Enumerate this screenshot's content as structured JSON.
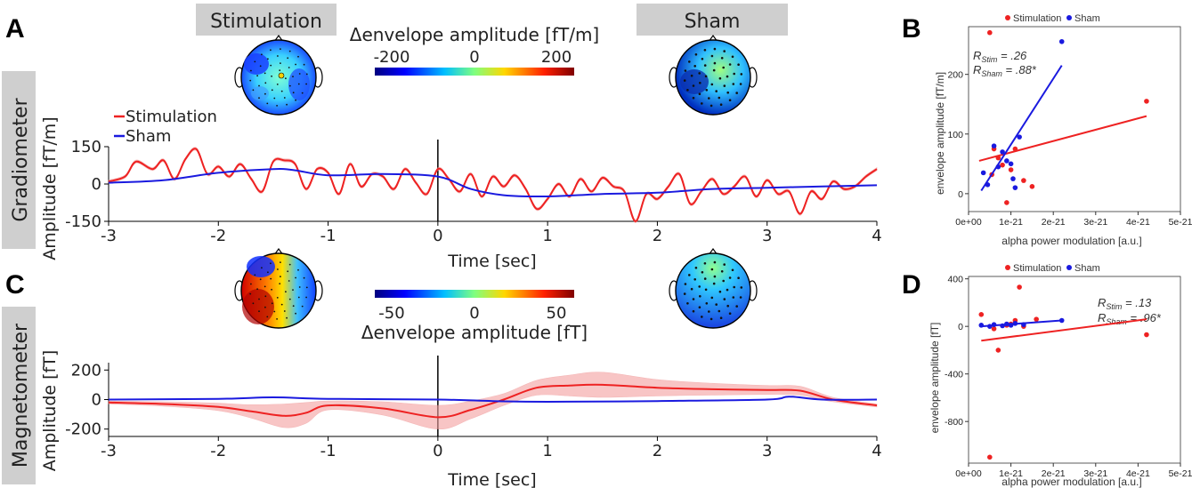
{
  "panels": {
    "a": "A",
    "b": "B",
    "c": "C",
    "d": "D"
  },
  "conditions": {
    "stim": "Stimulation",
    "sham": "Sham"
  },
  "sensors": {
    "grad": "Gradiometer",
    "mag": "Magnetometer"
  },
  "colorbars": {
    "grad": {
      "label": "Δenvelope amplitude [fT/m]",
      "ticks": [
        "-200",
        "0",
        "200"
      ]
    },
    "mag": {
      "label": "Δenvelope amplitude [fT]",
      "ticks": [
        "-50",
        "0",
        "50"
      ]
    }
  },
  "colors": {
    "stim": "#ee2222",
    "sham": "#1a1adf"
  },
  "chart_data": [
    {
      "id": "A",
      "type": "line",
      "xlabel": "Time [sec]",
      "ylabel": "Amplitude [fT/m]",
      "xlim": [
        -3,
        4
      ],
      "ylim": [
        -150,
        150
      ],
      "xticks": [
        "-3",
        "-2",
        "-1",
        "0",
        "1",
        "2",
        "3",
        "4"
      ],
      "yticks": [
        "150",
        "0",
        "-150"
      ],
      "legend": [
        "Stimulation",
        "Sham"
      ],
      "series": [
        {
          "name": "Stimulation",
          "x": [
            -3,
            -2.85,
            -2.75,
            -2.6,
            -2.5,
            -2.4,
            -2.3,
            -2.2,
            -2.1,
            -2.0,
            -1.9,
            -1.8,
            -1.7,
            -1.6,
            -1.5,
            -1.4,
            -1.3,
            -1.2,
            -1.1,
            -1.0,
            -0.9,
            -0.8,
            -0.7,
            -0.6,
            -0.5,
            -0.4,
            -0.3,
            -0.2,
            -0.1,
            0,
            0.1,
            0.2,
            0.3,
            0.4,
            0.5,
            0.6,
            0.7,
            0.8,
            0.9,
            1.0,
            1.1,
            1.2,
            1.3,
            1.4,
            1.5,
            1.6,
            1.7,
            1.8,
            1.9,
            2.0,
            2.1,
            2.2,
            2.3,
            2.4,
            2.5,
            2.6,
            2.7,
            2.8,
            2.9,
            3.0,
            3.1,
            3.2,
            3.3,
            3.4,
            3.5,
            3.6,
            3.7,
            3.8,
            3.9,
            4.0
          ],
          "y": [
            10,
            30,
            90,
            60,
            95,
            20,
            100,
            140,
            40,
            70,
            30,
            80,
            20,
            -30,
            90,
            95,
            80,
            -20,
            60,
            45,
            -40,
            80,
            -10,
            40,
            30,
            -20,
            60,
            5,
            -40,
            60,
            20,
            -30,
            40,
            -50,
            30,
            -10,
            35,
            -20,
            -100,
            -60,
            0,
            -50,
            20,
            -30,
            25,
            -10,
            -30,
            -150,
            -40,
            -60,
            -10,
            40,
            -80,
            -30,
            20,
            -40,
            -10,
            30,
            -50,
            15,
            -40,
            -30,
            -120,
            -30,
            -60,
            10,
            -20,
            -10,
            30,
            60
          ]
        },
        {
          "name": "Sham",
          "x": [
            -3,
            -2.5,
            -2,
            -1.5,
            -1.3,
            -1,
            -0.5,
            0,
            0.3,
            0.6,
            1,
            1.5,
            2,
            2.5,
            3,
            3.5,
            4
          ],
          "y": [
            5,
            15,
            45,
            60,
            55,
            35,
            40,
            30,
            -20,
            -45,
            -50,
            -40,
            -35,
            -20,
            -15,
            -10,
            -5
          ]
        }
      ]
    },
    {
      "id": "B",
      "type": "scatter",
      "xlabel": "alpha power modulation [a.u.]",
      "ylabel": "envelope amplitude [fT/m]",
      "xlim": [
        0,
        5e-21
      ],
      "ylim": [
        -30,
        280
      ],
      "xticks": [
        "0e+00",
        "1e-21",
        "2e-21",
        "3e-21",
        "4e-21",
        "5e-21"
      ],
      "yticks": [
        "200",
        "100",
        "0"
      ],
      "legend": [
        "Stimulation",
        "Sham"
      ],
      "annotations": [
        "R",
        "Stim",
        " = .26",
        "R",
        "Sham",
        " = .88*"
      ],
      "series": [
        {
          "name": "Stimulation",
          "x": [
            5e-22,
            6e-22,
            7e-22,
            8e-22,
            9e-22,
            1e-21,
            1.1e-21,
            1.3e-21,
            1.5e-21,
            5.5e-22,
            4.2e-21
          ],
          "y": [
            270,
            75,
            60,
            48,
            -15,
            40,
            75,
            22,
            12,
            32,
            155
          ],
          "fit": {
            "x": [
              2.5e-22,
              4.2e-21
            ],
            "y": [
              55,
              130
            ]
          }
        },
        {
          "name": "Sham",
          "x": [
            3.5e-22,
            4.5e-22,
            6e-22,
            7e-22,
            8e-22,
            9e-22,
            1e-21,
            1.05e-21,
            1.1e-21,
            1.2e-21,
            2.2e-21
          ],
          "y": [
            35,
            15,
            80,
            45,
            70,
            55,
            50,
            25,
            10,
            95,
            255
          ],
          "fit": {
            "x": [
              3e-22,
              2.2e-21
            ],
            "y": [
              5,
              215
            ]
          }
        }
      ]
    },
    {
      "id": "C",
      "type": "line",
      "xlabel": "Time [sec]",
      "ylabel": "Amplitude [fT]",
      "xlim": [
        -3,
        4
      ],
      "ylim": [
        -250,
        250
      ],
      "xticks": [
        "-3",
        "-2",
        "-1",
        "0",
        "1",
        "2",
        "3",
        "4"
      ],
      "yticks": [
        "200",
        "0",
        "-200"
      ],
      "series": [
        {
          "name": "Stimulation",
          "x": [
            -3,
            -2.5,
            -2,
            -1.7,
            -1.4,
            -1.2,
            -1,
            -0.5,
            0,
            0.3,
            0.6,
            0.9,
            1.2,
            1.5,
            2,
            2.5,
            3,
            3.3,
            3.6,
            4
          ],
          "y": [
            -20,
            -30,
            -50,
            -80,
            -110,
            -90,
            -40,
            -60,
            -120,
            -70,
            0,
            80,
            95,
            100,
            80,
            70,
            65,
            60,
            0,
            -40
          ]
        },
        {
          "name": "Sham",
          "x": [
            -3,
            -2,
            -1.5,
            -1,
            0,
            0.5,
            1,
            2,
            3,
            3.2,
            3.5,
            4
          ],
          "y": [
            0,
            5,
            15,
            5,
            0,
            -10,
            -15,
            -10,
            0,
            20,
            0,
            0
          ]
        }
      ]
    },
    {
      "id": "D",
      "type": "scatter",
      "xlabel": "alpha power modulation [a.u.]",
      "ylabel": "envelope amplitude [fT]",
      "xlim": [
        0,
        5e-21
      ],
      "ylim": [
        -1150,
        420
      ],
      "xticks": [
        "0e+00",
        "1e-21",
        "2e-21",
        "3e-21",
        "4e-21",
        "5e-21"
      ],
      "yticks": [
        "400",
        "0",
        "-400",
        "-800"
      ],
      "legend": [
        "Stimulation",
        "Sham"
      ],
      "annotations": [
        "R",
        "Stim",
        " = .13",
        "R",
        "Sham",
        " = .96*"
      ],
      "series": [
        {
          "name": "Stimulation",
          "x": [
            3e-22,
            5e-22,
            6e-22,
            7e-22,
            9e-22,
            1e-21,
            1.1e-21,
            1.2e-21,
            1.3e-21,
            1.6e-21,
            4.2e-21
          ],
          "y": [
            100,
            -1100,
            -20,
            -200,
            10,
            20,
            50,
            330,
            0,
            60,
            -70
          ],
          "fit": {
            "x": [
              3e-22,
              4.2e-21
            ],
            "y": [
              -120,
              60
            ]
          }
        },
        {
          "name": "Sham",
          "x": [
            3e-22,
            5e-22,
            6e-22,
            8e-22,
            9e-22,
            1e-21,
            1.1e-21,
            1.3e-21,
            2.2e-21
          ],
          "y": [
            10,
            0,
            15,
            5,
            20,
            10,
            25,
            15,
            50
          ],
          "fit": {
            "x": [
              3e-22,
              2.2e-21
            ],
            "y": [
              0,
              50
            ]
          }
        }
      ]
    }
  ]
}
